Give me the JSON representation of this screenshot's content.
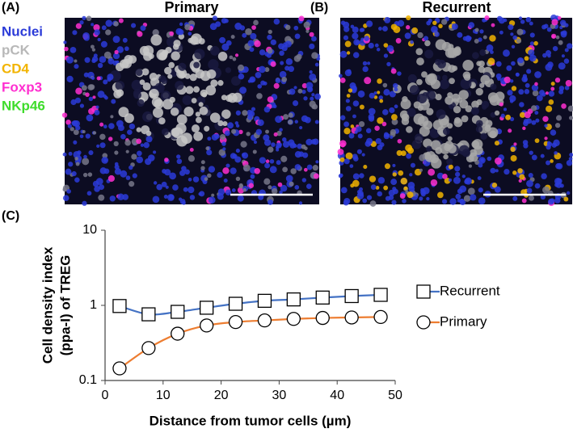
{
  "panels": [
    {
      "label": "(A)",
      "title": "Primary"
    },
    {
      "label": "(B)",
      "title": "Recurrent"
    }
  ],
  "stains": [
    {
      "name": "Nuclei",
      "color": "#2b3bd8"
    },
    {
      "name": "pCK",
      "color": "#b8b8b8"
    },
    {
      "name": "CD4",
      "color": "#f2b400"
    },
    {
      "name": "Foxp3",
      "color": "#ff2fd0"
    },
    {
      "name": "NKp46",
      "color": "#3fdc2c"
    }
  ],
  "chart_data": {
    "type": "line",
    "panel_label": "(C)",
    "xlabel": "Distance from tumor cells (µm)",
    "ylabel": [
      "Cell density index",
      "(ppa-I) of TREG"
    ],
    "x": [
      2.5,
      7.5,
      12.5,
      17.5,
      22.5,
      27.5,
      32.5,
      37.5,
      42.5,
      47.5
    ],
    "series": [
      {
        "name": "Recurrent",
        "color": "#4472c4",
        "marker": "square",
        "values": [
          0.98,
          0.76,
          0.82,
          0.93,
          1.05,
          1.15,
          1.2,
          1.27,
          1.33,
          1.38
        ]
      },
      {
        "name": "Primary",
        "color": "#ed7d31",
        "marker": "circle",
        "values": [
          0.145,
          0.27,
          0.42,
          0.54,
          0.6,
          0.63,
          0.66,
          0.68,
          0.69,
          0.7
        ]
      }
    ],
    "xlim": [
      0,
      50
    ],
    "xticks": [
      0,
      10,
      20,
      30,
      40,
      50
    ],
    "ylim": [
      0.1,
      10
    ],
    "yticks": [
      0.1,
      1,
      10
    ],
    "ylog": true,
    "legend": "right"
  }
}
